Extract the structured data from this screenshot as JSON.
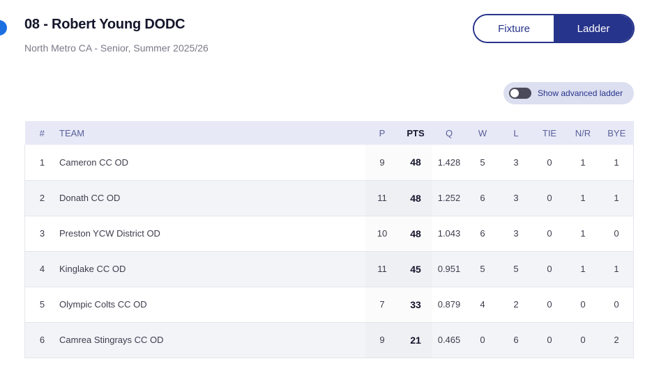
{
  "header": {
    "title": "08 - Robert Young DODC",
    "subtitle": "North Metro CA - Senior, Summer 2025/26"
  },
  "view_toggle": {
    "fixture_label": "Fixture",
    "ladder_label": "Ladder",
    "selected": "Ladder"
  },
  "advanced": {
    "label": "Show advanced ladder",
    "enabled": false
  },
  "table": {
    "columns": [
      "#",
      "TEAM",
      "P",
      "PTS",
      "Q",
      "W",
      "L",
      "TIE",
      "N/R",
      "BYE"
    ],
    "rows": [
      {
        "pos": "1",
        "team": "Cameron CC OD",
        "p": "9",
        "pts": "48",
        "q": "1.428",
        "w": "5",
        "l": "3",
        "tie": "0",
        "nr": "1",
        "bye": "1"
      },
      {
        "pos": "2",
        "team": "Donath CC OD",
        "p": "11",
        "pts": "48",
        "q": "1.252",
        "w": "6",
        "l": "3",
        "tie": "0",
        "nr": "1",
        "bye": "1"
      },
      {
        "pos": "3",
        "team": "Preston YCW District OD",
        "p": "10",
        "pts": "48",
        "q": "1.043",
        "w": "6",
        "l": "3",
        "tie": "0",
        "nr": "1",
        "bye": "0"
      },
      {
        "pos": "4",
        "team": "Kinglake CC OD",
        "p": "11",
        "pts": "45",
        "q": "0.951",
        "w": "5",
        "l": "5",
        "tie": "0",
        "nr": "1",
        "bye": "1"
      },
      {
        "pos": "5",
        "team": "Olympic Colts CC OD",
        "p": "7",
        "pts": "33",
        "q": "0.879",
        "w": "4",
        "l": "2",
        "tie": "0",
        "nr": "0",
        "bye": "0"
      },
      {
        "pos": "6",
        "team": "Camrea Stingrays CC OD",
        "p": "9",
        "pts": "21",
        "q": "0.465",
        "w": "0",
        "l": "6",
        "tie": "0",
        "nr": "0",
        "bye": "2"
      }
    ]
  },
  "colors": {
    "primary": "#27348b",
    "header_row": "#e7e9f6",
    "alt_row": "#f3f4f8"
  }
}
